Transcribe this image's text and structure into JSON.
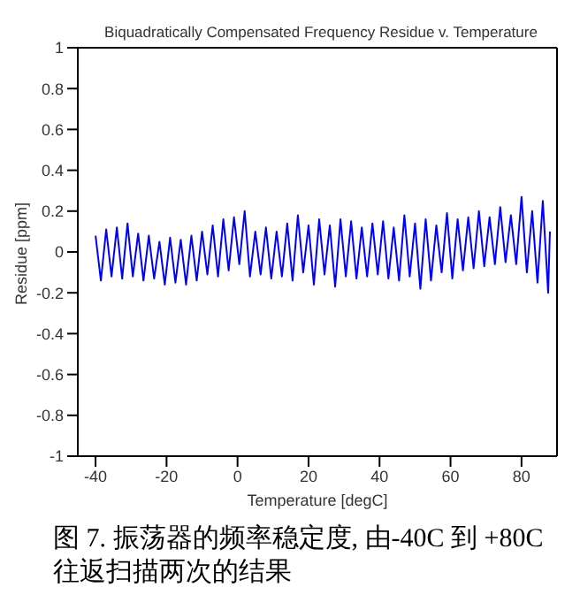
{
  "chart_data": {
    "type": "line",
    "title": "Biquadratically Compensated Frequency Residue v. Temperature",
    "xlabel": "Temperature [degC]",
    "ylabel": "Residue [ppm]",
    "annotations": [
      "图 7.  振荡器的频率稳定度, 由-40C 到 +80C 往返扫描两次的结果"
    ],
    "xlim": [
      -45,
      90
    ],
    "xticks": [
      -40,
      -20,
      0,
      20,
      40,
      60,
      80
    ],
    "ylim": [
      -1,
      1
    ],
    "yticks": [
      -1,
      -0.8,
      -0.6,
      -0.4,
      -0.2,
      0,
      0.2,
      0.4,
      0.6,
      0.8,
      1
    ],
    "legend": false,
    "marker": "none",
    "line_style": "solid",
    "series": [
      {
        "color": "#0000ff",
        "x": [
          -40,
          -38.5,
          -37,
          -35.5,
          -34,
          -32.5,
          -31,
          -29.5,
          -28,
          -26.5,
          -25,
          -23.5,
          -22,
          -20.5,
          -19,
          -17.5,
          -16,
          -14.5,
          -13,
          -11.5,
          -10,
          -8.5,
          -7,
          -5.5,
          -4,
          -2.5,
          -1,
          0.5,
          2,
          3.5,
          5,
          6.5,
          8,
          9.5,
          11,
          12.5,
          14,
          15.5,
          17,
          18.5,
          20,
          21.5,
          23,
          24.5,
          26,
          27.5,
          29,
          30.5,
          32,
          33.5,
          35,
          36.5,
          38,
          39.5,
          41,
          42.5,
          44,
          45.5,
          47,
          48.5,
          50,
          51.5,
          53,
          54.5,
          56,
          57.5,
          59,
          60.5,
          62,
          63.5,
          65,
          66.5,
          68,
          69.5,
          71,
          72.5,
          74,
          75.5,
          77,
          78.5,
          80,
          81.5,
          83,
          84.5,
          86,
          87.5,
          88
        ],
        "values": [
          0.08,
          -0.14,
          0.11,
          -0.12,
          0.12,
          -0.13,
          0.14,
          -0.12,
          0.09,
          -0.14,
          0.08,
          -0.13,
          0.05,
          -0.16,
          0.07,
          -0.15,
          0.06,
          -0.16,
          0.08,
          -0.14,
          0.1,
          -0.11,
          0.13,
          -0.12,
          0.16,
          -0.09,
          0.17,
          -0.06,
          0.2,
          -0.12,
          0.1,
          -0.11,
          0.12,
          -0.13,
          0.1,
          -0.12,
          0.14,
          -0.14,
          0.18,
          -0.1,
          0.13,
          -0.16,
          0.16,
          -0.11,
          0.13,
          -0.17,
          0.16,
          -0.12,
          0.15,
          -0.13,
          0.12,
          -0.12,
          0.14,
          -0.11,
          0.15,
          -0.13,
          0.12,
          -0.14,
          0.18,
          -0.12,
          0.14,
          -0.18,
          0.16,
          -0.14,
          0.13,
          -0.1,
          0.19,
          -0.13,
          0.16,
          -0.09,
          0.17,
          -0.08,
          0.2,
          -0.07,
          0.17,
          -0.06,
          0.22,
          -0.05,
          0.18,
          -0.06,
          0.27,
          -0.1,
          0.2,
          -0.15,
          0.25,
          -0.2,
          0.1
        ]
      }
    ]
  }
}
